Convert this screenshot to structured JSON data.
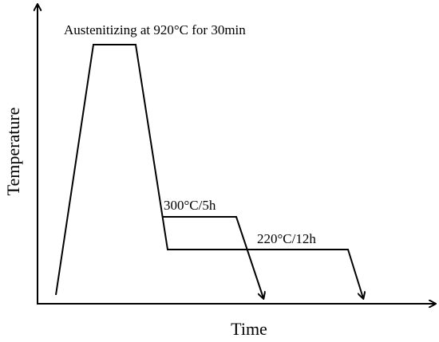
{
  "annotations": {
    "austenitizing": "Austenitizing at 920°C for 30min",
    "step_1": "300°C/5h",
    "step_2": "220°C/12h"
  },
  "axes": {
    "y_label": "Temperature",
    "x_label": "Time"
  }
}
